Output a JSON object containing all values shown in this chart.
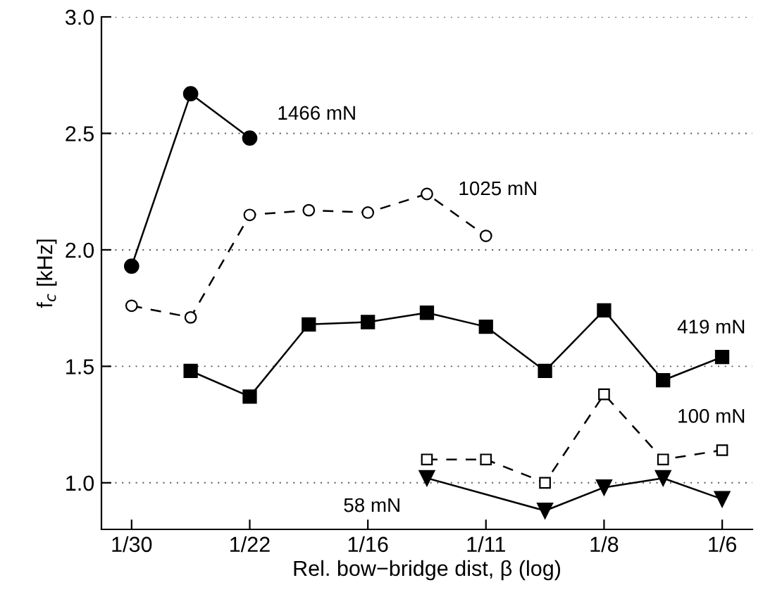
{
  "chart_data": {
    "type": "line",
    "xlabel": "Rel. bow−bridge dist, β (log)",
    "ylabel": "f$_{c}$ [kHz]",
    "log": "x",
    "xlim": [
      0.0307,
      0.181
    ],
    "ylim": [
      0.8,
      3.0
    ],
    "xticks": [
      {
        "value": 0.03333,
        "label": "1/30"
      },
      {
        "value": 0.04599,
        "label": "1/22"
      },
      {
        "value": 0.06346,
        "label": "1/16"
      },
      {
        "value": 0.08755,
        "label": "1/11"
      },
      {
        "value": 0.1208,
        "label": "1/8"
      },
      {
        "value": 0.1667,
        "label": "1/6"
      }
    ],
    "yticks": [
      {
        "value": 1.0,
        "label": "1.0"
      },
      {
        "value": 1.5,
        "label": "1.5"
      },
      {
        "value": 2.0,
        "label": "2.0"
      },
      {
        "value": 2.5,
        "label": "2.5"
      },
      {
        "value": 3.0,
        "label": "3.0"
      }
    ],
    "grid": "y",
    "legend": false,
    "series": [
      {
        "name": "1466 mN",
        "color": "#000000",
        "marker": "circle",
        "line_style": "solid",
        "x": [
          0.03333,
          0.03915,
          0.04599
        ],
        "values": [
          1.93,
          2.67,
          2.48
        ]
      },
      {
        "name": "1025 mN",
        "color": "#000000",
        "marker": "circle",
        "line_style": "dashed",
        "x": [
          0.03333,
          0.03915,
          0.04599,
          0.05402,
          0.06346,
          0.07454,
          0.08755
        ],
        "values": [
          1.76,
          1.71,
          2.15,
          2.17,
          2.16,
          2.24,
          2.06
        ]
      },
      {
        "name": "419 mN",
        "color": "#000000",
        "marker": "square",
        "line_style": "solid",
        "x": [
          0.03915,
          0.04599,
          0.05402,
          0.06346,
          0.07454,
          0.08755,
          0.10284,
          0.1208,
          0.14189,
          0.16667
        ],
        "values": [
          1.48,
          1.37,
          1.68,
          1.69,
          1.73,
          1.67,
          1.48,
          1.74,
          1.44,
          1.54
        ]
      },
      {
        "name": "100 mN",
        "color": "#000000",
        "marker": "square",
        "line_style": "dashed",
        "x": [
          0.07454,
          0.08755,
          0.10284,
          0.1208,
          0.14189,
          0.16667
        ],
        "values": [
          1.1,
          1.1,
          1.0,
          1.38,
          1.1,
          1.14
        ]
      },
      {
        "name": "58 mN",
        "color": "#000000",
        "marker": "triangle",
        "line_style": "solid",
        "x": [
          0.07454,
          0.10284,
          0.1208,
          0.14189,
          0.16667
        ],
        "values": [
          1.02,
          0.88,
          0.98,
          1.02,
          0.93
        ]
      }
    ]
  }
}
